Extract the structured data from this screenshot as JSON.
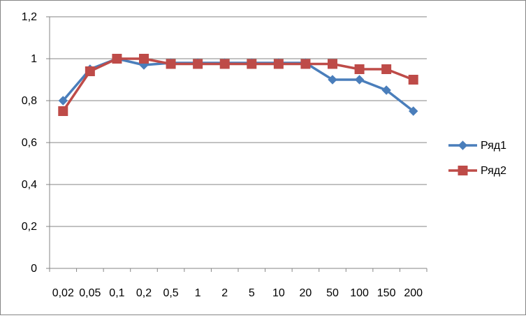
{
  "chart_data": {
    "type": "line",
    "categories": [
      "0,02",
      "0,05",
      "0,1",
      "0,2",
      "0,5",
      "1",
      "2",
      "5",
      "10",
      "20",
      "50",
      "100",
      "150",
      "200"
    ],
    "series": [
      {
        "name": "Ряд1",
        "color": "#4a7ebb",
        "marker": "diamond",
        "values": [
          0.8,
          0.95,
          1.0,
          0.97,
          0.98,
          0.98,
          0.98,
          0.98,
          0.98,
          0.98,
          0.9,
          0.9,
          0.85,
          0.75
        ]
      },
      {
        "name": "Ряд2",
        "color": "#be4b48",
        "marker": "square",
        "values": [
          0.75,
          0.94,
          1.0,
          1.0,
          0.975,
          0.975,
          0.975,
          0.975,
          0.975,
          0.975,
          0.975,
          0.95,
          0.95,
          0.9
        ]
      }
    ],
    "ylim": [
      0,
      1.2
    ],
    "yticks": [
      "0",
      "0,2",
      "0,4",
      "0,6",
      "0,8",
      "1",
      "1,2"
    ],
    "ytick_values": [
      0,
      0.2,
      0.4,
      0.6,
      0.8,
      1.0,
      1.2
    ],
    "grid": true,
    "legend_position": "right"
  }
}
